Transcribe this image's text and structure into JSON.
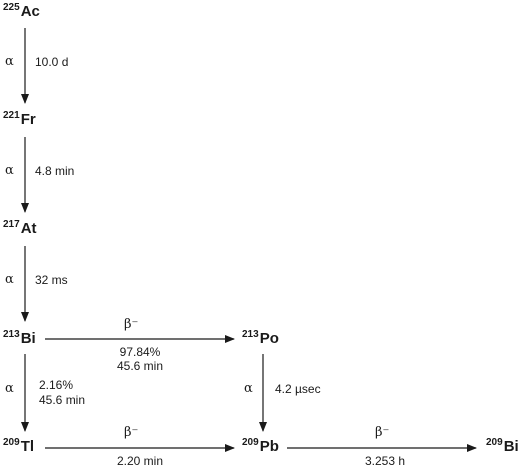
{
  "nuclides": {
    "ac225": {
      "mass": "225",
      "symbol": "Ac"
    },
    "fr221": {
      "mass": "221",
      "symbol": "Fr"
    },
    "at217": {
      "mass": "217",
      "symbol": "At"
    },
    "bi213": {
      "mass": "213",
      "symbol": "Bi"
    },
    "po213": {
      "mass": "213",
      "symbol": "Po"
    },
    "tl209": {
      "mass": "209",
      "symbol": "Tl"
    },
    "pb209": {
      "mass": "209",
      "symbol": "Pb"
    },
    "bi209": {
      "mass": "209",
      "symbol": "Bi"
    }
  },
  "decays": {
    "ac_fr": {
      "type": "α",
      "halflife": "10.0 d"
    },
    "fr_at": {
      "type": "α",
      "halflife": "4.8 min"
    },
    "at_bi": {
      "type": "α",
      "halflife": "32 ms"
    },
    "bi_po": {
      "type": "β⁻",
      "branch": "97.84%",
      "halflife": "45.6 min"
    },
    "bi_tl": {
      "type": "α",
      "branch": "2.16%",
      "halflife": "45.6 min"
    },
    "po_pb": {
      "type": "α",
      "halflife": "4.2 µsec"
    },
    "tl_pb": {
      "type": "β⁻",
      "halflife": "2.20 min"
    },
    "pb_bi": {
      "type": "β⁻",
      "halflife": "3.253 h"
    }
  }
}
